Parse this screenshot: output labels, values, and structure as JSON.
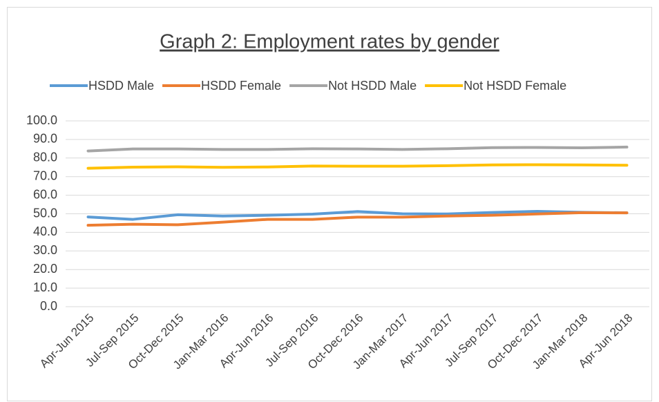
{
  "chart_data": {
    "type": "line",
    "title": "Graph 2: Employment rates by gender",
    "categories": [
      "Apr-Jun 2015",
      "Jul-Sep 2015",
      "Oct-Dec 2015",
      "Jan-Mar 2016",
      "Apr-Jun 2016",
      "Jul-Sep 2016",
      "Oct-Dec 2016",
      "Jan-Mar 2017",
      "Apr-Jun 2017",
      "Jul-Sep 2017",
      "Oct-Dec 2017",
      "Jan-Mar 2018",
      "Apr-Jun 2018"
    ],
    "series": [
      {
        "name": "HSDD Male",
        "color": "#5b9bd5",
        "values": [
          48.3,
          47,
          49.5,
          48.8,
          49.2,
          49.8,
          51.2,
          50,
          49.9,
          50.7,
          51.3,
          50.8,
          50.5
        ]
      },
      {
        "name": "HSDD Female",
        "color": "#ed7d31",
        "values": [
          43.8,
          44.4,
          44.1,
          45.5,
          47,
          47,
          48.2,
          48.2,
          48.8,
          49.2,
          49.9,
          50.6,
          50.5
        ]
      },
      {
        "name": "Not HSDD Male",
        "color": "#a5a5a5",
        "values": [
          83.8,
          84.9,
          84.9,
          84.6,
          84.6,
          85,
          84.9,
          84.6,
          85,
          85.6,
          85.7,
          85.5,
          85.9
        ]
      },
      {
        "name": "Not HSDD Female",
        "color": "#ffc000",
        "values": [
          74.5,
          75.1,
          75.3,
          75,
          75.2,
          75.7,
          75.6,
          75.6,
          75.9,
          76.3,
          76.4,
          76.3,
          76.1
        ]
      }
    ],
    "ylim": [
      0,
      100
    ],
    "yticks": [
      {
        "value": 0,
        "label": "0.0"
      },
      {
        "value": 10,
        "label": "10.0"
      },
      {
        "value": 20,
        "label": "20.0"
      },
      {
        "value": 30,
        "label": "30.0"
      },
      {
        "value": 40,
        "label": "40.0"
      },
      {
        "value": 50,
        "label": "50.0"
      },
      {
        "value": 60,
        "label": "60.0"
      },
      {
        "value": 70,
        "label": "70.0"
      },
      {
        "value": 80,
        "label": "80.0"
      },
      {
        "value": 90,
        "label": "90.0"
      },
      {
        "value": 100,
        "label": "100.0"
      }
    ],
    "grid": true,
    "legend": "top"
  }
}
